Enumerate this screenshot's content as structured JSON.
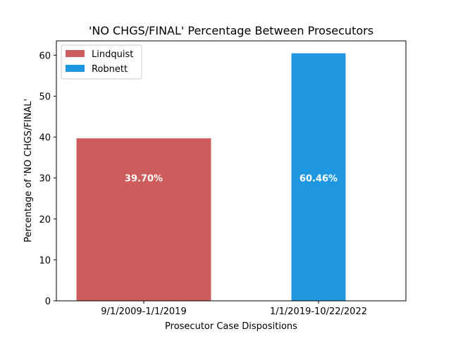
{
  "chart_data": {
    "type": "bar",
    "title": "'NO CHGS/FINAL' Percentage Between Prosecutors",
    "xlabel": "Prosecutor Case Dispositions",
    "ylabel": "Percentage of 'NO CHGS/FINAL'",
    "ylim": [
      0,
      63.5
    ],
    "yticks": [
      0,
      10,
      20,
      30,
      40,
      50,
      60
    ],
    "categories": [
      "9/1/2009-1/1/2019",
      "1/1/2019-10/22/2022"
    ],
    "series": [
      {
        "name": "Lindquist",
        "values": [
          39.7,
          null
        ],
        "color": "#cd5c5c",
        "data_label": "39.70%"
      },
      {
        "name": "Robnett",
        "values": [
          null,
          60.46
        ],
        "color": "#1e96e0",
        "data_label": "60.46%"
      }
    ],
    "bar_width_ratios": [
      0.77,
      0.31
    ],
    "grid": false,
    "legend_position": "upper left"
  }
}
